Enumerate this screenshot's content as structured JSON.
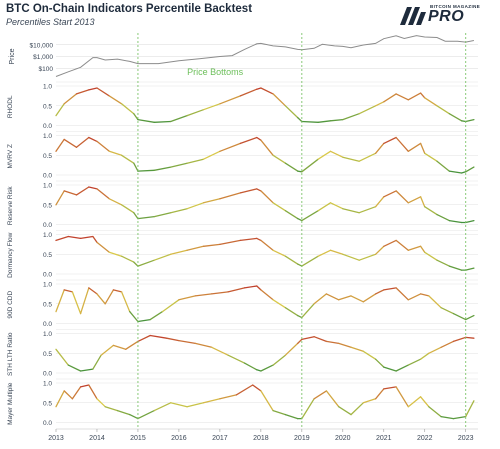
{
  "header": {
    "title": "BTC On-Chain Indicators Percentile Backtest",
    "subtitle": "Percentiles Start 2013",
    "brand_small": "BITCOIN MAGAZINE",
    "brand_big": "PRO"
  },
  "colors": {
    "price_line": "#8c8c8c",
    "vline": "#7cc46a",
    "low": "#2f8a3a",
    "mid": "#d9c94a",
    "high": "#c0392b",
    "annotation": "#6cbf5a",
    "grid": "#d9d9d9",
    "text": "#3a4656"
  },
  "chart_data": {
    "type": "line",
    "x_axis": {
      "label": "",
      "ticks": [
        "2013",
        "2014",
        "2015",
        "2016",
        "2017",
        "2018",
        "2019",
        "2020",
        "2021",
        "2022",
        "2023"
      ],
      "range": [
        2013.0,
        2023.3
      ]
    },
    "price_bottom_years": [
      2015.0,
      2019.0,
      2023.0
    ],
    "annotation": "Price Bottoms",
    "price_panel": {
      "ylabel": "Price",
      "scale": "log",
      "ticks": [
        "$10,000",
        "$1,000",
        "$100"
      ],
      "series": {
        "x": [
          2013.0,
          2013.3,
          2013.6,
          2013.9,
          2014.0,
          2014.2,
          2014.5,
          2014.8,
          2015.0,
          2015.5,
          2016.0,
          2016.5,
          2017.0,
          2017.3,
          2017.6,
          2017.9,
          2018.0,
          2018.3,
          2018.6,
          2018.9,
          2019.0,
          2019.3,
          2019.5,
          2019.8,
          2020.0,
          2020.2,
          2020.5,
          2020.8,
          2021.0,
          2021.3,
          2021.5,
          2021.8,
          2022.0,
          2022.3,
          2022.5,
          2022.8,
          2023.0,
          2023.2
        ],
        "y": [
          20,
          50,
          120,
          800,
          800,
          500,
          600,
          380,
          250,
          250,
          430,
          650,
          1000,
          1200,
          4000,
          12000,
          13000,
          8000,
          6500,
          4000,
          3700,
          5000,
          11000,
          8000,
          7200,
          5500,
          9500,
          13000,
          33000,
          58000,
          34000,
          60000,
          46000,
          41000,
          20000,
          19500,
          16800,
          23000
        ]
      }
    },
    "panels": [
      {
        "name": "RHODL",
        "ylim": [
          0,
          1
        ],
        "yticks": [
          "1.0",
          "0.5",
          "0.0"
        ],
        "series": {
          "x": [
            2013.0,
            2013.2,
            2013.5,
            2013.8,
            2014.0,
            2014.3,
            2014.6,
            2014.9,
            2015.0,
            2015.4,
            2015.8,
            2016.2,
            2016.6,
            2017.0,
            2017.5,
            2017.9,
            2018.0,
            2018.3,
            2018.6,
            2018.9,
            2019.0,
            2019.4,
            2019.7,
            2020.0,
            2020.4,
            2020.8,
            2021.0,
            2021.3,
            2021.6,
            2021.9,
            2022.0,
            2022.3,
            2022.6,
            2022.9,
            2023.0,
            2023.2
          ],
          "y": [
            0.25,
            0.55,
            0.8,
            0.9,
            0.95,
            0.75,
            0.55,
            0.3,
            0.15,
            0.08,
            0.1,
            0.25,
            0.4,
            0.55,
            0.75,
            0.92,
            0.95,
            0.8,
            0.5,
            0.2,
            0.1,
            0.08,
            0.12,
            0.15,
            0.3,
            0.5,
            0.6,
            0.8,
            0.65,
            0.82,
            0.7,
            0.5,
            0.3,
            0.12,
            0.1,
            0.15
          ]
        }
      },
      {
        "name": "MVRV Z",
        "ylim": [
          0,
          1
        ],
        "yticks": [
          "1.0",
          "0.5",
          "0.0"
        ],
        "series": {
          "x": [
            2013.0,
            2013.2,
            2013.5,
            2013.8,
            2014.0,
            2014.3,
            2014.6,
            2014.9,
            2015.0,
            2015.4,
            2015.8,
            2016.2,
            2016.6,
            2017.0,
            2017.5,
            2017.9,
            2018.0,
            2018.3,
            2018.6,
            2018.9,
            2019.0,
            2019.4,
            2019.7,
            2020.0,
            2020.4,
            2020.8,
            2021.0,
            2021.3,
            2021.6,
            2021.9,
            2022.0,
            2022.3,
            2022.6,
            2022.9,
            2023.0,
            2023.2
          ],
          "y": [
            0.6,
            0.9,
            0.7,
            0.95,
            0.85,
            0.6,
            0.5,
            0.3,
            0.1,
            0.12,
            0.2,
            0.3,
            0.4,
            0.6,
            0.8,
            0.95,
            0.88,
            0.5,
            0.3,
            0.1,
            0.08,
            0.4,
            0.6,
            0.45,
            0.35,
            0.55,
            0.8,
            0.95,
            0.6,
            0.8,
            0.55,
            0.35,
            0.1,
            0.05,
            0.08,
            0.2
          ]
        }
      },
      {
        "name": "Reserve Risk",
        "ylim": [
          0,
          1
        ],
        "yticks": [
          "1.0",
          "0.5",
          "0.0"
        ],
        "series": {
          "x": [
            2013.0,
            2013.2,
            2013.5,
            2013.8,
            2014.0,
            2014.3,
            2014.6,
            2014.9,
            2015.0,
            2015.4,
            2015.8,
            2016.2,
            2016.6,
            2017.0,
            2017.5,
            2017.9,
            2018.0,
            2018.3,
            2018.6,
            2018.9,
            2019.0,
            2019.4,
            2019.7,
            2020.0,
            2020.4,
            2020.8,
            2021.0,
            2021.3,
            2021.6,
            2021.9,
            2022.0,
            2022.3,
            2022.6,
            2022.9,
            2023.0,
            2023.2
          ],
          "y": [
            0.5,
            0.85,
            0.75,
            0.95,
            0.9,
            0.65,
            0.5,
            0.3,
            0.15,
            0.2,
            0.3,
            0.4,
            0.55,
            0.65,
            0.8,
            0.9,
            0.85,
            0.55,
            0.35,
            0.15,
            0.1,
            0.35,
            0.55,
            0.4,
            0.3,
            0.45,
            0.7,
            0.85,
            0.55,
            0.7,
            0.45,
            0.25,
            0.1,
            0.05,
            0.05,
            0.1
          ]
        }
      },
      {
        "name": "Dormancy Flow",
        "ylim": [
          0,
          1
        ],
        "yticks": [
          "1.0",
          "0.5",
          "0.0"
        ],
        "series": {
          "x": [
            2013.0,
            2013.3,
            2013.6,
            2013.9,
            2014.0,
            2014.3,
            2014.6,
            2014.9,
            2015.0,
            2015.4,
            2015.8,
            2016.2,
            2016.6,
            2017.0,
            2017.5,
            2017.9,
            2018.0,
            2018.3,
            2018.6,
            2018.9,
            2019.0,
            2019.4,
            2019.7,
            2020.0,
            2020.4,
            2020.8,
            2021.0,
            2021.3,
            2021.6,
            2021.9,
            2022.0,
            2022.3,
            2022.6,
            2022.9,
            2023.0,
            2023.2
          ],
          "y": [
            0.85,
            0.95,
            0.9,
            0.95,
            0.8,
            0.55,
            0.45,
            0.3,
            0.2,
            0.35,
            0.5,
            0.6,
            0.7,
            0.75,
            0.85,
            0.9,
            0.85,
            0.6,
            0.45,
            0.25,
            0.2,
            0.45,
            0.6,
            0.5,
            0.35,
            0.5,
            0.7,
            0.85,
            0.6,
            0.7,
            0.55,
            0.35,
            0.2,
            0.1,
            0.1,
            0.15
          ]
        }
      },
      {
        "name": "90D CDD",
        "ylim": [
          0,
          1
        ],
        "yticks": [
          "1.0",
          "0.5",
          "0.0"
        ],
        "series": {
          "x": [
            2013.0,
            2013.2,
            2013.4,
            2013.6,
            2013.8,
            2014.0,
            2014.2,
            2014.4,
            2014.6,
            2014.8,
            2015.0,
            2015.3,
            2015.6,
            2016.0,
            2016.4,
            2016.8,
            2017.2,
            2017.6,
            2017.9,
            2018.0,
            2018.3,
            2018.6,
            2018.9,
            2019.0,
            2019.3,
            2019.6,
            2019.9,
            2020.2,
            2020.5,
            2020.8,
            2021.0,
            2021.3,
            2021.6,
            2021.9,
            2022.1,
            2022.4,
            2022.7,
            2023.0,
            2023.2
          ],
          "y": [
            0.3,
            0.85,
            0.8,
            0.25,
            0.9,
            0.75,
            0.5,
            0.85,
            0.8,
            0.3,
            0.05,
            0.1,
            0.3,
            0.6,
            0.7,
            0.75,
            0.8,
            0.9,
            0.95,
            0.85,
            0.6,
            0.4,
            0.2,
            0.15,
            0.5,
            0.75,
            0.6,
            0.7,
            0.55,
            0.75,
            0.85,
            0.9,
            0.6,
            0.75,
            0.7,
            0.4,
            0.25,
            0.1,
            0.2
          ]
        }
      },
      {
        "name": "STH LTH Ratio",
        "ylim": [
          0,
          1
        ],
        "yticks": [
          "1.0",
          "0.5",
          "0.0"
        ],
        "series": {
          "x": [
            2013.0,
            2013.3,
            2013.6,
            2013.9,
            2014.1,
            2014.4,
            2014.7,
            2015.0,
            2015.3,
            2015.7,
            2016.0,
            2016.4,
            2016.8,
            2017.2,
            2017.6,
            2017.9,
            2018.0,
            2018.3,
            2018.6,
            2018.9,
            2019.0,
            2019.3,
            2019.6,
            2019.9,
            2020.2,
            2020.5,
            2020.8,
            2021.0,
            2021.3,
            2021.6,
            2021.9,
            2022.1,
            2022.4,
            2022.7,
            2023.0,
            2023.2
          ],
          "y": [
            0.6,
            0.2,
            0.05,
            0.1,
            0.45,
            0.7,
            0.6,
            0.8,
            0.95,
            0.88,
            0.82,
            0.75,
            0.65,
            0.45,
            0.25,
            0.08,
            0.05,
            0.2,
            0.45,
            0.75,
            0.85,
            0.92,
            0.8,
            0.75,
            0.65,
            0.55,
            0.35,
            0.15,
            0.05,
            0.2,
            0.35,
            0.5,
            0.65,
            0.8,
            0.9,
            0.88
          ]
        }
      },
      {
        "name": "Mayer Multiple",
        "ylim": [
          0,
          1
        ],
        "yticks": [
          "1.0",
          "0.5",
          "0.0"
        ],
        "series": {
          "x": [
            2013.0,
            2013.2,
            2013.4,
            2013.6,
            2013.8,
            2014.0,
            2014.2,
            2014.5,
            2014.8,
            2015.0,
            2015.4,
            2015.8,
            2016.2,
            2016.6,
            2017.0,
            2017.4,
            2017.8,
            2018.0,
            2018.3,
            2018.6,
            2018.9,
            2019.0,
            2019.3,
            2019.6,
            2019.9,
            2020.2,
            2020.5,
            2020.8,
            2021.0,
            2021.3,
            2021.6,
            2021.9,
            2022.1,
            2022.4,
            2022.7,
            2023.0,
            2023.2
          ],
          "y": [
            0.4,
            0.8,
            0.6,
            0.9,
            0.95,
            0.6,
            0.4,
            0.3,
            0.2,
            0.1,
            0.3,
            0.5,
            0.4,
            0.5,
            0.6,
            0.7,
            0.95,
            0.8,
            0.3,
            0.2,
            0.1,
            0.1,
            0.6,
            0.8,
            0.4,
            0.2,
            0.5,
            0.6,
            0.85,
            0.9,
            0.4,
            0.65,
            0.4,
            0.15,
            0.1,
            0.15,
            0.55
          ]
        }
      }
    ]
  }
}
